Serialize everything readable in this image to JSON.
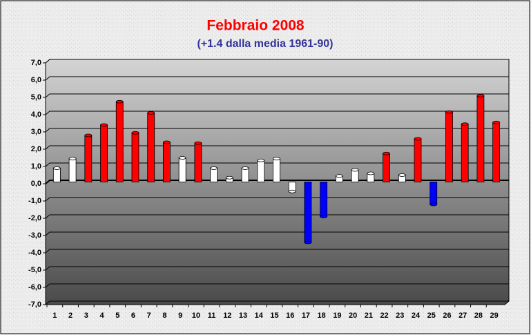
{
  "chart_data": {
    "type": "bar",
    "title": "Febbraio 2008",
    "subtitle": "(+1.4 dalla media 1961-90)",
    "categories": [
      "1",
      "2",
      "3",
      "4",
      "5",
      "6",
      "7",
      "8",
      "9",
      "10",
      "11",
      "12",
      "13",
      "14",
      "15",
      "16",
      "17",
      "18",
      "19",
      "20",
      "21",
      "22",
      "23",
      "24",
      "25",
      "26",
      "27",
      "28",
      "29"
    ],
    "values": [
      0.8,
      1.35,
      2.7,
      3.3,
      4.65,
      2.85,
      4.0,
      2.3,
      1.4,
      2.25,
      0.8,
      0.25,
      0.8,
      1.25,
      1.35,
      -0.55,
      -3.5,
      -2.0,
      0.35,
      0.7,
      0.5,
      1.65,
      0.4,
      2.5,
      -1.3,
      4.05,
      3.35,
      5.0,
      3.45
    ],
    "colors": [
      "#ffffff",
      "#ffffff",
      "#ff0000",
      "#ff0000",
      "#ff0000",
      "#ff0000",
      "#ff0000",
      "#ff0000",
      "#ffffff",
      "#ff0000",
      "#ffffff",
      "#ffffff",
      "#ffffff",
      "#ffffff",
      "#ffffff",
      "#ffffff",
      "#0000ff",
      "#0000ff",
      "#ffffff",
      "#ffffff",
      "#ffffff",
      "#ff0000",
      "#ffffff",
      "#ff0000",
      "#0000ff",
      "#ff0000",
      "#ff0000",
      "#ff0000",
      "#ff0000"
    ],
    "ylim": [
      -7,
      7
    ],
    "yticks": [
      {
        "value": -7,
        "label": "-7,0"
      },
      {
        "value": -6,
        "label": "-6,0"
      },
      {
        "value": -5,
        "label": "-5,0"
      },
      {
        "value": -4,
        "label": "-4,0"
      },
      {
        "value": -3,
        "label": "-3,0"
      },
      {
        "value": -2,
        "label": "-2,0"
      },
      {
        "value": -1,
        "label": "-1,0"
      },
      {
        "value": 0,
        "label": "0,0"
      },
      {
        "value": 1,
        "label": "1,0"
      },
      {
        "value": 2,
        "label": "2,0"
      },
      {
        "value": 3,
        "label": "3,0"
      },
      {
        "value": 4,
        "label": "4,0"
      },
      {
        "value": 5,
        "label": "5,0"
      },
      {
        "value": 6,
        "label": "6,0"
      },
      {
        "value": 7,
        "label": "7,0"
      }
    ],
    "grid": true
  }
}
